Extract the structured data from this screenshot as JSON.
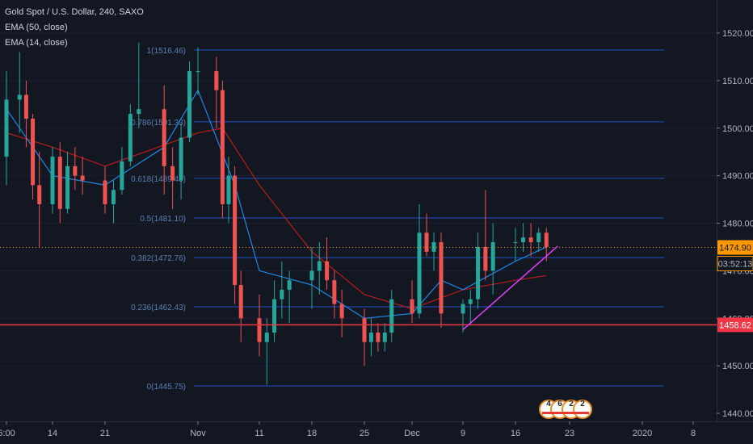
{
  "legend": {
    "symbol": "Gold Spot / U.S. Dollar, 240, SAXO",
    "ema50": "EMA (50, close)",
    "ema14": "EMA (14, close)"
  },
  "colors": {
    "background": "#131722",
    "up": "#26a69a",
    "down": "#ef5350",
    "fib_line": "#2962ff",
    "fib_text": "#5b7fb2",
    "support_line": "#f23645",
    "ema50": "#b71c1c",
    "ema14": "#1e88e5",
    "trendline": "#e040fb",
    "price_tag": "#ff9800",
    "support_tag": "#f23645",
    "axis_text": "#b2b5be"
  },
  "chart_data": {
    "type": "candlestick",
    "y_axis": {
      "ticks": [
        1440,
        1450,
        1460,
        1470,
        1480,
        1490,
        1500,
        1510,
        1520
      ],
      "tick_labels": [
        "1440.00",
        "1450.00",
        "1460.00",
        "1470.00",
        "1480.00",
        "1490.00",
        "1500.00",
        "1510.00",
        "1520.00"
      ],
      "range": [
        1439,
        1524
      ]
    },
    "x_axis": {
      "tick_labels": [
        "6:00",
        "14",
        "21",
        "Nov",
        "11",
        "18",
        "25",
        "Dec",
        "9",
        "16",
        "23",
        "2020",
        "8"
      ],
      "tick_dates": [
        "2019-10-07",
        "2019-10-14",
        "2019-10-21",
        "2019-11-01",
        "2019-11-11",
        "2019-11-18",
        "2019-11-25",
        "2019-12-02",
        "2019-12-09",
        "2019-12-16",
        "2019-12-23",
        "2020-01-01",
        "2020-01-08"
      ]
    },
    "fib_levels": [
      {
        "label": "1(1516.46)",
        "price": 1516.46
      },
      {
        "label": "0.786(1501.33)",
        "price": 1501.33
      },
      {
        "label": "0.618(1489.45)",
        "price": 1489.45
      },
      {
        "label": "0.5(1481.10)",
        "price": 1481.1
      },
      {
        "label": "0.382(1472.76)",
        "price": 1472.76
      },
      {
        "label": "0.236(1462.43)",
        "price": 1462.43
      },
      {
        "label": "0(1445.75)",
        "price": 1445.75
      }
    ],
    "current_price": {
      "value": 1474.9,
      "label": "1474.90",
      "countdown": "03:52:13"
    },
    "support": {
      "value": 1458.62,
      "label": "1458.62"
    },
    "trendline": {
      "from": {
        "date": "2019-12-09",
        "price": 1457.6
      },
      "to": {
        "date": "2019-12-20",
        "price": 1474.5
      }
    },
    "candles": [
      {
        "date": "2019-10-07",
        "ohlc": [
          1494,
          1512,
          1488,
          1506
        ]
      },
      {
        "date": "2019-10-09",
        "ohlc": [
          1506,
          1516,
          1499,
          1507
        ]
      },
      {
        "date": "2019-10-10",
        "ohlc": [
          1507,
          1510,
          1496,
          1502
        ]
      },
      {
        "date": "2019-10-11",
        "ohlc": [
          1502,
          1503,
          1485,
          1488
        ]
      },
      {
        "date": "2019-10-12",
        "ohlc": [
          1488,
          1495,
          1475,
          1484
        ]
      },
      {
        "date": "2019-10-14",
        "ohlc": [
          1484,
          1496,
          1482,
          1494
        ]
      },
      {
        "date": "2019-10-15",
        "ohlc": [
          1494,
          1497,
          1480,
          1483
        ]
      },
      {
        "date": "2019-10-16",
        "ohlc": [
          1483,
          1495,
          1482,
          1492
        ]
      },
      {
        "date": "2019-10-17",
        "ohlc": [
          1492,
          1496,
          1487,
          1490
        ]
      },
      {
        "date": "2019-10-18",
        "ohlc": [
          1490,
          1494,
          1486,
          1489
        ]
      },
      {
        "date": "2019-10-21",
        "ohlc": [
          1489,
          1492,
          1482,
          1484
        ]
      },
      {
        "date": "2019-10-22",
        "ohlc": [
          1484,
          1489,
          1480,
          1487
        ]
      },
      {
        "date": "2019-10-23",
        "ohlc": [
          1487,
          1496,
          1486,
          1493
        ]
      },
      {
        "date": "2019-10-24",
        "ohlc": [
          1493,
          1505,
          1492,
          1503
        ]
      },
      {
        "date": "2019-10-25",
        "ohlc": [
          1503,
          1518,
          1500,
          1504
        ]
      },
      {
        "date": "2019-10-28",
        "ohlc": [
          1504,
          1509,
          1486,
          1492
        ]
      },
      {
        "date": "2019-10-29",
        "ohlc": [
          1492,
          1496,
          1483,
          1489
        ]
      },
      {
        "date": "2019-10-30",
        "ohlc": [
          1489,
          1501,
          1485,
          1498
        ]
      },
      {
        "date": "2019-10-31",
        "ohlc": [
          1498,
          1514,
          1497,
          1512
        ]
      },
      {
        "date": "2019-11-01",
        "ohlc": [
          1512,
          1517,
          1507,
          1512
        ]
      },
      {
        "date": "2019-11-04",
        "ohlc": [
          1512,
          1515,
          1500,
          1508
        ]
      },
      {
        "date": "2019-11-05",
        "ohlc": [
          1508,
          1510,
          1481,
          1484
        ]
      },
      {
        "date": "2019-11-06",
        "ohlc": [
          1484,
          1494,
          1480,
          1490
        ]
      },
      {
        "date": "2019-11-07",
        "ohlc": [
          1490,
          1492,
          1463,
          1467
        ]
      },
      {
        "date": "2019-11-08",
        "ohlc": [
          1467,
          1470,
          1455,
          1460
        ]
      },
      {
        "date": "2019-11-11",
        "ohlc": [
          1460,
          1465,
          1452,
          1455
        ]
      },
      {
        "date": "2019-11-12",
        "ohlc": [
          1455,
          1460,
          1446,
          1457
        ]
      },
      {
        "date": "2019-11-13",
        "ohlc": [
          1457,
          1468,
          1455,
          1464
        ]
      },
      {
        "date": "2019-11-14",
        "ohlc": [
          1464,
          1472,
          1460,
          1466
        ]
      },
      {
        "date": "2019-11-15",
        "ohlc": [
          1466,
          1470,
          1459,
          1468
        ]
      },
      {
        "date": "2019-11-18",
        "ohlc": [
          1468,
          1475,
          1462,
          1470
        ]
      },
      {
        "date": "2019-11-19",
        "ohlc": [
          1470,
          1476,
          1465,
          1472
        ]
      },
      {
        "date": "2019-11-20",
        "ohlc": [
          1472,
          1477,
          1466,
          1468
        ]
      },
      {
        "date": "2019-11-21",
        "ohlc": [
          1468,
          1470,
          1460,
          1463
        ]
      },
      {
        "date": "2019-11-22",
        "ohlc": [
          1463,
          1466,
          1456,
          1460
        ]
      },
      {
        "date": "2019-11-25",
        "ohlc": [
          1460,
          1462,
          1450,
          1455
        ]
      },
      {
        "date": "2019-11-26",
        "ohlc": [
          1455,
          1460,
          1452,
          1457
        ]
      },
      {
        "date": "2019-11-27",
        "ohlc": [
          1457,
          1459,
          1453,
          1455
        ]
      },
      {
        "date": "2019-11-28",
        "ohlc": [
          1455,
          1459,
          1453,
          1457
        ]
      },
      {
        "date": "2019-11-29",
        "ohlc": [
          1457,
          1466,
          1455,
          1464
        ]
      },
      {
        "date": "2019-12-02",
        "ohlc": [
          1464,
          1468,
          1459,
          1461
        ]
      },
      {
        "date": "2019-12-03",
        "ohlc": [
          1461,
          1484,
          1460,
          1478
        ]
      },
      {
        "date": "2019-12-04",
        "ohlc": [
          1478,
          1482,
          1473,
          1474
        ]
      },
      {
        "date": "2019-12-05",
        "ohlc": [
          1474,
          1478,
          1470,
          1476
        ]
      },
      {
        "date": "2019-12-06",
        "ohlc": [
          1476,
          1478,
          1458,
          1461
        ]
      },
      {
        "date": "2019-12-09",
        "ohlc": [
          1461,
          1464,
          1457,
          1463
        ]
      },
      {
        "date": "2019-12-10",
        "ohlc": [
          1463,
          1466,
          1459,
          1464
        ]
      },
      {
        "date": "2019-12-11",
        "ohlc": [
          1464,
          1478,
          1462,
          1475
        ]
      },
      {
        "date": "2019-12-12",
        "ohlc": [
          1475,
          1487,
          1468,
          1470
        ]
      },
      {
        "date": "2019-12-13",
        "ohlc": [
          1470,
          1480,
          1465,
          1476
        ]
      },
      {
        "date": "2019-12-16",
        "ohlc": [
          1476,
          1479,
          1472,
          1476
        ]
      },
      {
        "date": "2019-12-17",
        "ohlc": [
          1476,
          1480,
          1474,
          1477
        ]
      },
      {
        "date": "2019-12-18",
        "ohlc": [
          1477,
          1480,
          1473,
          1476
        ]
      },
      {
        "date": "2019-12-19",
        "ohlc": [
          1476,
          1479,
          1474,
          1478
        ]
      },
      {
        "date": "2019-12-20",
        "ohlc": [
          1478,
          1479,
          1472,
          1475
        ]
      }
    ],
    "ema50": [
      {
        "date": "2019-10-07",
        "value": 1499
      },
      {
        "date": "2019-10-14",
        "value": 1496
      },
      {
        "date": "2019-10-21",
        "value": 1492
      },
      {
        "date": "2019-11-01",
        "value": 1499
      },
      {
        "date": "2019-11-05",
        "value": 1500
      },
      {
        "date": "2019-11-11",
        "value": 1488
      },
      {
        "date": "2019-11-18",
        "value": 1474
      },
      {
        "date": "2019-11-25",
        "value": 1465
      },
      {
        "date": "2019-12-02",
        "value": 1462
      },
      {
        "date": "2019-12-09",
        "value": 1466
      },
      {
        "date": "2019-12-16",
        "value": 1468
      },
      {
        "date": "2019-12-20",
        "value": 1469
      }
    ],
    "ema14": [
      {
        "date": "2019-10-07",
        "value": 1504
      },
      {
        "date": "2019-10-14",
        "value": 1490
      },
      {
        "date": "2019-10-21",
        "value": 1488
      },
      {
        "date": "2019-10-28",
        "value": 1496
      },
      {
        "date": "2019-11-01",
        "value": 1508
      },
      {
        "date": "2019-11-07",
        "value": 1488
      },
      {
        "date": "2019-11-11",
        "value": 1470
      },
      {
        "date": "2019-11-18",
        "value": 1467
      },
      {
        "date": "2019-11-25",
        "value": 1460
      },
      {
        "date": "2019-12-02",
        "value": 1461
      },
      {
        "date": "2019-12-06",
        "value": 1468
      },
      {
        "date": "2019-12-09",
        "value": 1466
      },
      {
        "date": "2019-12-16",
        "value": 1472
      },
      {
        "date": "2019-12-20",
        "value": 1475
      }
    ]
  },
  "ideas_badge": {
    "digits": [
      "4",
      "6",
      "2",
      "2"
    ]
  }
}
